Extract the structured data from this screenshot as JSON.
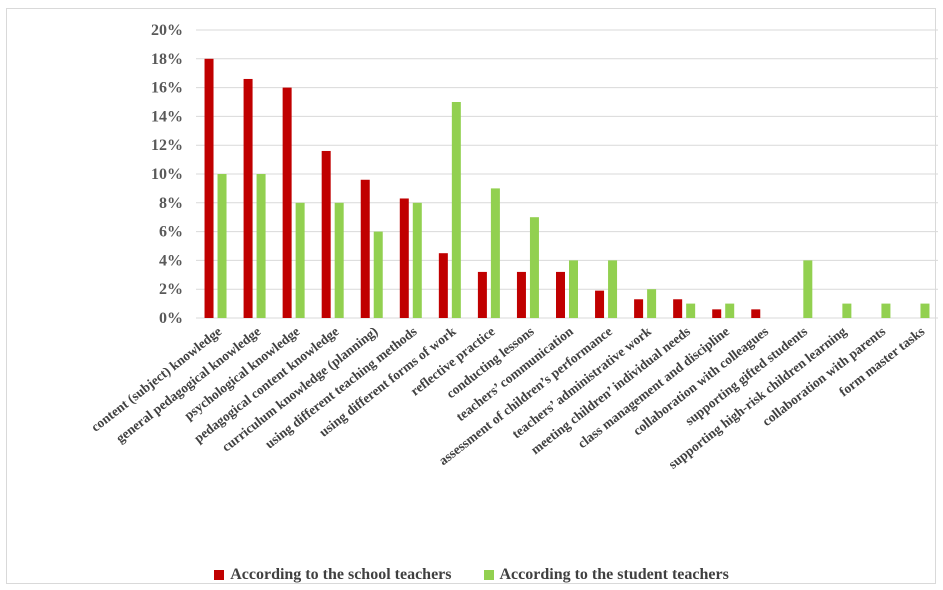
{
  "chart_data": {
    "type": "bar",
    "title": "",
    "xlabel": "",
    "ylabel": "",
    "ylim": [
      0,
      20
    ],
    "y_tick_suffix": "%",
    "y_ticks": [
      0,
      2,
      4,
      6,
      8,
      10,
      12,
      14,
      16,
      18,
      20
    ],
    "grid": true,
    "legend_position": "bottom",
    "categories": [
      "content (subject) knowledge",
      "general pedagogical knowledge",
      "psychological knowledge",
      "pedagogical content knowledge",
      "curriculum knowledge (planning)",
      "using different teaching methods",
      "using different forms of work",
      "reflective practice",
      "conducting lessons",
      "teachers’ communication",
      "assessment of children’s performance",
      "teachers’ administrative work",
      "meeting children’ individual needs",
      "class management and discipline",
      "collaboration with colleagues",
      "supporting gifted students",
      "supporting high-risk children learning",
      "collaboration with parents",
      "form master tasks"
    ],
    "series": [
      {
        "name": "According to the school teachers",
        "color": "#c00000",
        "values": [
          18,
          16.6,
          16,
          11.6,
          9.6,
          8.3,
          4.5,
          3.2,
          3.2,
          3.2,
          1.9,
          1.3,
          1.3,
          0.6,
          0.6,
          0,
          0,
          0,
          0
        ]
      },
      {
        "name": "According to the student teachers",
        "color": "#92d050",
        "values": [
          10,
          10,
          8,
          8,
          6,
          8,
          15,
          9,
          7,
          4,
          4,
          2,
          1,
          1,
          0,
          4,
          1,
          1,
          1
        ]
      }
    ]
  }
}
